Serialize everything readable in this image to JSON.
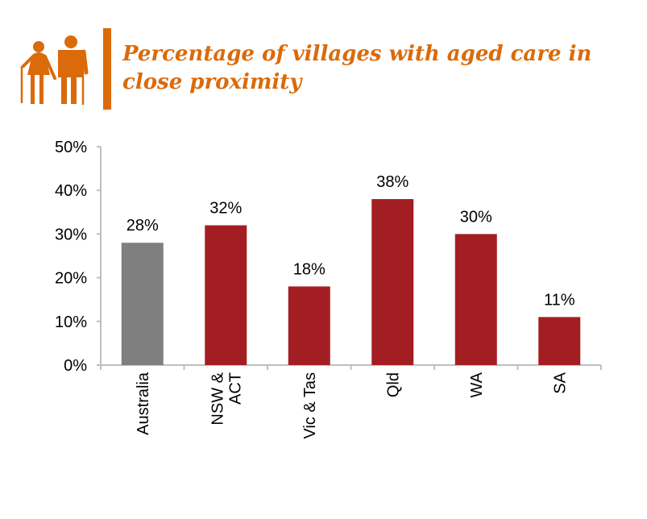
{
  "header": {
    "icon": "elderly-couple-icon",
    "title_line1": "Percentage of villages with aged care in",
    "title_line2": "close proximity"
  },
  "colors": {
    "accent": "#DB6A0A",
    "highlight_bar": "#7F7F7F",
    "bar": "#A31E22",
    "axis": "#BFBFBF"
  },
  "chart_data": {
    "type": "bar",
    "title": "Percentage of villages with aged care in close proximity",
    "xlabel": "",
    "ylabel": "",
    "categories": [
      [
        "Australia"
      ],
      [
        "NSW &",
        "ACT"
      ],
      [
        "Vic & Tas"
      ],
      [
        "Qld"
      ],
      [
        "WA"
      ],
      [
        "SA"
      ]
    ],
    "values": [
      28,
      32,
      18,
      38,
      30,
      11
    ],
    "data_labels": [
      "28%",
      "32%",
      "18%",
      "38%",
      "30%",
      "11%"
    ],
    "highlight_index": 0,
    "ylim": [
      0,
      50
    ],
    "yticks": [
      0,
      10,
      20,
      30,
      40,
      50
    ],
    "ytick_labels": [
      "0%",
      "10%",
      "20%",
      "30%",
      "40%",
      "50%"
    ],
    "grid": false,
    "legend": "none"
  }
}
